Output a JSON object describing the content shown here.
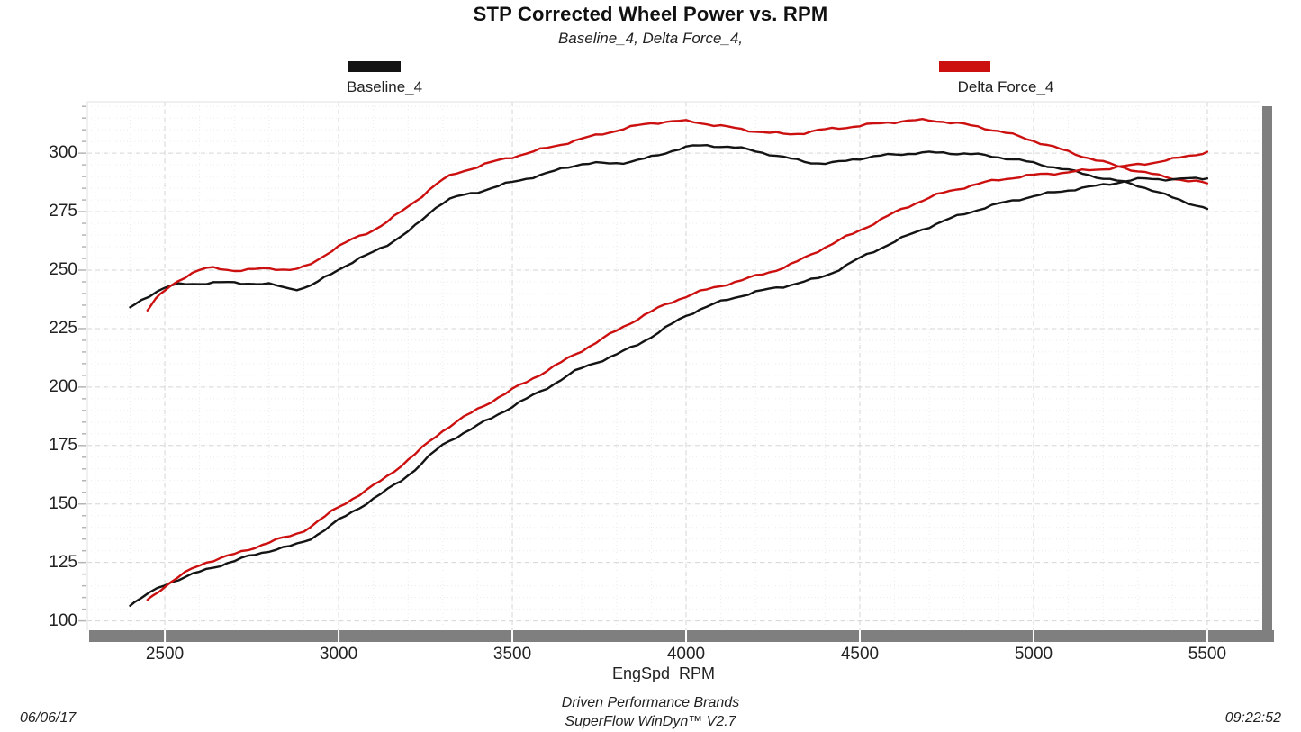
{
  "footer": {
    "date": "06/06/17",
    "time": "09:22:52",
    "brand_line1": "Driven Performance Brands",
    "brand_line2": "SuperFlow WinDyn™ V2.7"
  },
  "chart_data": {
    "type": "line",
    "title": "STP Corrected Wheel Power vs. RPM",
    "subtitle": "Baseline_4, Delta Force_4,",
    "xlabel": "EngSpd  RPM",
    "ylabel": "",
    "x_ticks": [
      2500,
      3000,
      3500,
      4000,
      4500,
      5000,
      5500
    ],
    "y_ticks": [
      100,
      125,
      150,
      175,
      200,
      225,
      250,
      275,
      300
    ],
    "x_minor_step": 100,
    "y_minor_step": 5,
    "axis_window": {
      "x_min": 2277,
      "x_max": 5653,
      "y_min": 96,
      "y_max": 322
    },
    "grid": "on",
    "legend_position": "top",
    "colors": {
      "baseline": "#141414",
      "delta_force": "#cc1010",
      "axis_bar": "#7f7f7f"
    },
    "legend": [
      {
        "label": "Baseline_4",
        "color": "#141414"
      },
      {
        "label": "Delta Force_4",
        "color": "#cc1010"
      }
    ],
    "series": [
      {
        "name": "Baseline_4_upper",
        "color": "#141414",
        "rpm": [
          2400,
          2500,
          2600,
          2700,
          2800,
          2900,
          3000,
          3100,
          3200,
          3300,
          3400,
          3500,
          3600,
          3700,
          3800,
          3900,
          4000,
          4100,
          4200,
          4300,
          4400,
          4500,
          4600,
          4700,
          4800,
          4900,
          5000,
          5100,
          5200,
          5300,
          5400,
          5500
        ],
        "values": [
          233.9,
          242.5,
          244.3,
          244.6,
          243.8,
          242.3,
          250.4,
          257.8,
          266.4,
          278.9,
          283.4,
          287.6,
          291.4,
          295.4,
          295.7,
          298.3,
          302.6,
          303.0,
          300.9,
          297.6,
          295.6,
          297.8,
          299.4,
          300.2,
          299.8,
          298.3,
          295.8,
          292.7,
          289.3,
          286.2,
          281.0,
          276.2
        ]
      },
      {
        "name": "Delta_Force_4_upper",
        "color": "#cc1010",
        "rpm": [
          2450,
          2500,
          2600,
          2700,
          2800,
          2900,
          3000,
          3100,
          3200,
          3300,
          3400,
          3500,
          3600,
          3700,
          3800,
          3900,
          4000,
          4100,
          4200,
          4300,
          4400,
          4500,
          4600,
          4700,
          4800,
          4900,
          5000,
          5100,
          5200,
          5300,
          5400,
          5500
        ],
        "values": [
          233.2,
          241.1,
          250.2,
          250.0,
          250.6,
          251.2,
          260.3,
          267.2,
          277.0,
          288.6,
          294.3,
          298.4,
          302.2,
          306.1,
          309.7,
          312.8,
          313.6,
          311.6,
          309.4,
          308.2,
          310.1,
          311.7,
          313.4,
          314.0,
          312.3,
          309.4,
          305.3,
          300.6,
          296.2,
          292.4,
          289.3,
          287.1
        ]
      },
      {
        "name": "Baseline_4_lower",
        "color": "#141414",
        "rpm": [
          2400,
          2500,
          2600,
          2700,
          2800,
          2900,
          3000,
          3100,
          3200,
          3300,
          3400,
          3500,
          3600,
          3700,
          3800,
          3900,
          4000,
          4100,
          4200,
          4300,
          4400,
          4500,
          4600,
          4700,
          4800,
          4900,
          5000,
          5100,
          5200,
          5300,
          5400,
          5500
        ],
        "values": [
          106.9,
          115.4,
          120.9,
          125.7,
          130.0,
          133.8,
          143.0,
          152.2,
          162.3,
          175.2,
          183.5,
          191.7,
          199.7,
          208.1,
          213.9,
          221.5,
          230.5,
          236.5,
          240.6,
          243.7,
          247.6,
          255.1,
          262.2,
          268.6,
          274.0,
          278.3,
          281.6,
          284.2,
          286.4,
          288.8,
          288.9,
          289.2
        ]
      },
      {
        "name": "Delta_Force_4_lower",
        "color": "#cc1010",
        "rpm": [
          2450,
          2500,
          2600,
          2700,
          2800,
          2900,
          3000,
          3100,
          3200,
          3300,
          3400,
          3500,
          3600,
          3700,
          3800,
          3900,
          4000,
          4100,
          4200,
          4300,
          4400,
          4500,
          4600,
          4700,
          4800,
          4900,
          5000,
          5100,
          5200,
          5300,
          5400,
          5500
        ],
        "values": [
          108.8,
          114.8,
          123.9,
          128.5,
          133.6,
          138.7,
          148.7,
          157.7,
          168.8,
          181.3,
          190.5,
          198.9,
          207.1,
          215.6,
          224.1,
          232.3,
          238.8,
          243.3,
          247.4,
          252.3,
          259.8,
          267.0,
          274.5,
          281.0,
          285.4,
          288.6,
          290.6,
          291.9,
          293.3,
          295.1,
          297.4,
          300.6
        ]
      }
    ]
  }
}
